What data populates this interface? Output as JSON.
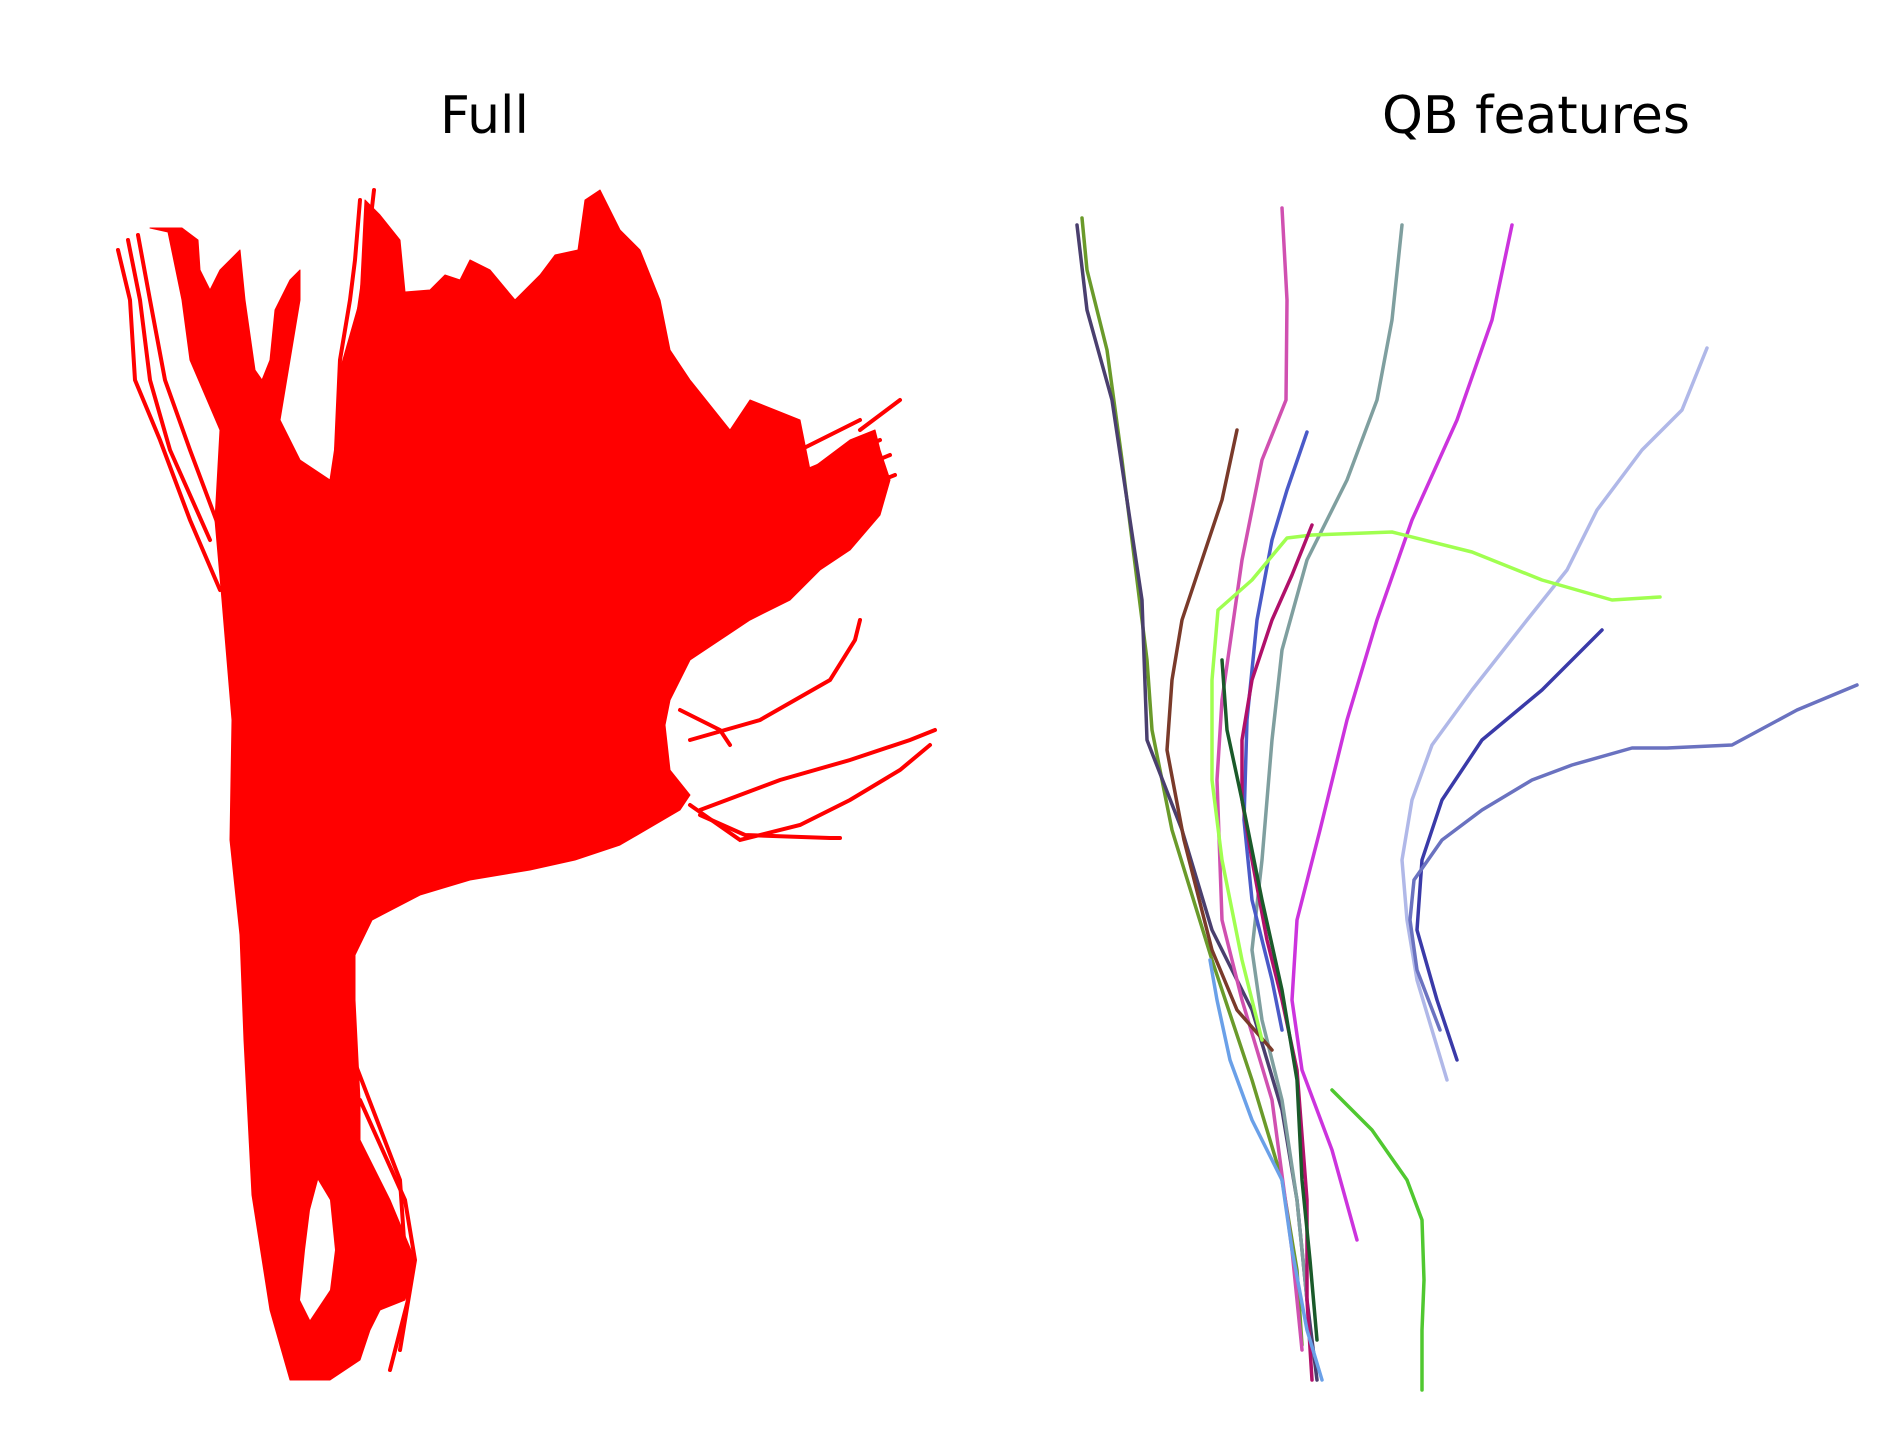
{
  "panels": {
    "full": {
      "title": "Full",
      "fill_color": "#ff0000"
    },
    "qb_features": {
      "title": "QB features",
      "stroke_colors": [
        "#6a9a2a",
        "#4a3f6e",
        "#d050b0",
        "#7f9f9f",
        "#cc33dd",
        "#b0b8e8",
        "#7a3a2a",
        "#4a5ac8",
        "#a0ff50",
        "#b0106a",
        "#3a3aa8",
        "#6a72c0",
        "#6aa0e8",
        "#50c830",
        "#1a5a2a"
      ]
    }
  }
}
